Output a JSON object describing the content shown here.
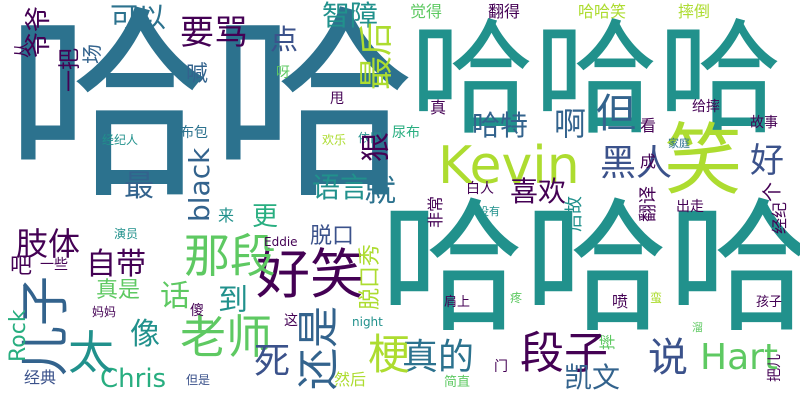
{
  "word_cloud": {
    "colors": {
      "dark_purple": "#440154",
      "indigo": "#3b528b",
      "slate_blue": "#33638d",
      "steel_blue": "#2c728e",
      "teal": "#21918c",
      "sea_green": "#28ae80",
      "green": "#5ec962",
      "lime": "#addc30",
      "yellow": "#fde725"
    },
    "words": {
      "haha_big": "哈哈",
      "hahaha_top": "哈哈哈",
      "hahaha_bottom": "哈哈哈",
      "kevin": "Kevin",
      "xiao": "笑",
      "hart": "Hart",
      "haoxiao": "好笑",
      "naduan": "那段",
      "laoshi": "老师",
      "erzi": "儿子",
      "duanzi": "段子",
      "zhende": "真的",
      "geng_stem": "梗",
      "haishi": "还是",
      "chris": "Chris",
      "tai": "太",
      "si": "死",
      "shuo": "说",
      "heiren": "黑人",
      "black": "black",
      "zuihou": "最后",
      "zhizhang": "智障",
      "yaoma": "要骂",
      "dian": "点",
      "keyi": "可以",
      "yeye": "爷爷",
      "ha_te": "哈特",
      "a": "啊",
      "dan": "但",
      "hen": "狠",
      "hao": "好",
      "jiu": "就",
      "xihuan": "喜欢",
      "zui": "最",
      "yuyan": "语言",
      "zhiti": "肢体",
      "zidai": "自带",
      "tuokouxiu": "脱口秀",
      "tuokou": "脱口",
      "geng_more": "更",
      "hua": "话",
      "dao": "到",
      "xiang": "像",
      "kaiwen": "凯文",
      "rock": "Rock",
      "zhenshi": "真是",
      "ba": "吧",
      "yixie": "一些",
      "han": "喊",
      "juede": "觉得",
      "fande": "翻得",
      "hahaxiao": "哈哈笑",
      "shuaidao": "摔倒",
      "yiba": "一把",
      "chang": "场",
      "cong": "从",
      "ya": "呀",
      "shuai": "甩",
      "geishuai": "给摔",
      "zhen": "真",
      "kan": "看",
      "gushi": "故事",
      "jingjiren": "经纪人",
      "bubao": "布包",
      "huanle": "欢乐",
      "yijiu": "依旧",
      "niaobu": "尿布",
      "jiating": "家庭",
      "cheng": "成",
      "ge": "个",
      "jingji": "经纪",
      "chuzou": "出走",
      "fanyi": "翻译",
      "meiyou": "没有",
      "houbei": "后故",
      "bairen": "白人",
      "feichang": "非常",
      "lai": "来",
      "yanyuan": "演员",
      "eddie": "Eddie",
      "jianshang": "肩上",
      "teng": "疼",
      "man": "蛮",
      "haizi": "孩子",
      "pen": "喷",
      "sha": "傻",
      "zhe": "这",
      "night": "night",
      "mama": "妈妈",
      "liu": "溜",
      "shuai2": "摔",
      "jingdian": "经典",
      "ranhou": "然后",
      "danshi": "但是",
      "jianzhi": "简直",
      "men": "门",
      "baer": "把儿"
    }
  }
}
